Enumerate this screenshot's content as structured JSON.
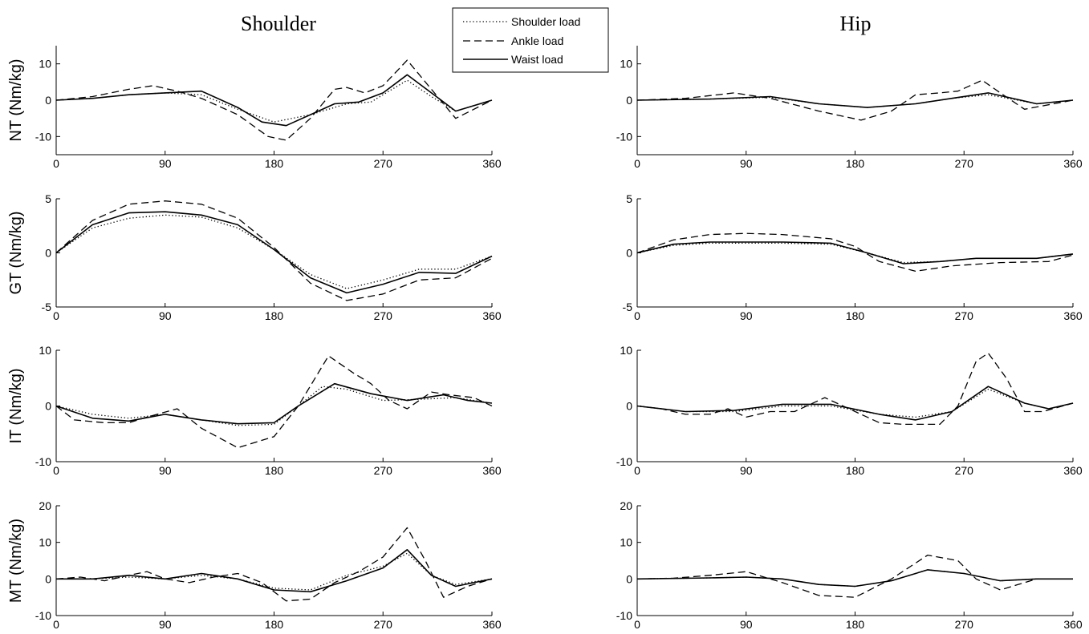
{
  "figure": {
    "column_titles": [
      "Shoulder",
      "Hip"
    ],
    "legend": [
      "Shoulder load",
      "Ankle load",
      "Waist load"
    ]
  },
  "chart_data": [
    {
      "type": "line",
      "column": "Shoulder",
      "ylabel": "NT (Nm/kg)",
      "xlim": [
        0,
        360
      ],
      "ylim": [
        -15,
        15
      ],
      "xticks": [
        0,
        90,
        180,
        270,
        360
      ],
      "yticks": [
        10,
        0,
        -10
      ],
      "series": [
        {
          "name": "Shoulder load",
          "style": "dotted",
          "x": [
            0,
            30,
            60,
            90,
            120,
            150,
            180,
            210,
            240,
            260,
            290,
            310,
            330,
            360
          ],
          "y": [
            0,
            0.5,
            1.5,
            2,
            1.5,
            -2.5,
            -6,
            -4,
            -1,
            -0.5,
            5.5,
            1,
            -3,
            0
          ]
        },
        {
          "name": "Ankle load",
          "style": "dashed",
          "x": [
            0,
            30,
            60,
            80,
            100,
            120,
            150,
            175,
            190,
            210,
            230,
            240,
            255,
            270,
            290,
            310,
            330,
            360
          ],
          "y": [
            0,
            1,
            3,
            4,
            2.5,
            0.5,
            -4,
            -10,
            -11,
            -5,
            3,
            3.5,
            2,
            4,
            11,
            3,
            -5,
            0
          ]
        },
        {
          "name": "Waist load",
          "style": "solid",
          "x": [
            0,
            30,
            60,
            90,
            120,
            150,
            170,
            190,
            210,
            230,
            250,
            270,
            290,
            310,
            330,
            360
          ],
          "y": [
            0,
            0.5,
            1.5,
            2,
            2.5,
            -2,
            -6,
            -7,
            -4,
            -1,
            -0.5,
            2,
            7,
            2,
            -3,
            0
          ]
        }
      ]
    },
    {
      "type": "line",
      "column": "Hip",
      "ylabel": "",
      "xlim": [
        0,
        360
      ],
      "ylim": [
        -15,
        15
      ],
      "xticks": [
        0,
        90,
        180,
        270,
        360
      ],
      "yticks": [
        10,
        0,
        -10
      ],
      "series": [
        {
          "name": "Shoulder load",
          "style": "dotted",
          "x": [
            0,
            60,
            110,
            150,
            190,
            230,
            260,
            290,
            330,
            360
          ],
          "y": [
            0,
            0.3,
            0.8,
            -1,
            -2,
            -1,
            0.5,
            1.5,
            -1,
            0
          ]
        },
        {
          "name": "Ankle load",
          "style": "dashed",
          "x": [
            0,
            40,
            80,
            110,
            150,
            185,
            210,
            230,
            250,
            265,
            285,
            300,
            320,
            360
          ],
          "y": [
            0,
            0.5,
            2,
            0.5,
            -3,
            -5.5,
            -3,
            1.5,
            2,
            2.5,
            5.5,
            2,
            -2.5,
            0
          ]
        },
        {
          "name": "Waist load",
          "style": "solid",
          "x": [
            0,
            60,
            110,
            150,
            190,
            230,
            260,
            290,
            330,
            360
          ],
          "y": [
            0,
            0.3,
            1,
            -1,
            -2,
            -1,
            0.5,
            2,
            -1,
            0
          ]
        }
      ]
    },
    {
      "type": "line",
      "column": "Shoulder",
      "ylabel": "GT (Nm/kg)",
      "xlim": [
        0,
        360
      ],
      "ylim": [
        -5,
        5
      ],
      "xticks": [
        0,
        90,
        180,
        270,
        360
      ],
      "yticks": [
        5,
        0,
        -5
      ],
      "series": [
        {
          "name": "Shoulder load",
          "style": "dotted",
          "x": [
            0,
            30,
            60,
            90,
            120,
            150,
            180,
            210,
            240,
            270,
            300,
            330,
            360
          ],
          "y": [
            0,
            2.3,
            3.2,
            3.5,
            3.3,
            2.3,
            0.3,
            -2,
            -3.3,
            -2.5,
            -1.5,
            -1.5,
            -0.3
          ]
        },
        {
          "name": "Ankle load",
          "style": "dashed",
          "x": [
            0,
            30,
            60,
            90,
            120,
            150,
            180,
            210,
            240,
            270,
            300,
            330,
            360
          ],
          "y": [
            0,
            3,
            4.5,
            4.8,
            4.5,
            3.2,
            0.5,
            -2.8,
            -4.4,
            -3.8,
            -2.5,
            -2.3,
            -0.5
          ]
        },
        {
          "name": "Waist load",
          "style": "solid",
          "x": [
            0,
            30,
            60,
            90,
            120,
            150,
            180,
            210,
            240,
            270,
            300,
            330,
            360
          ],
          "y": [
            0,
            2.6,
            3.7,
            3.8,
            3.5,
            2.6,
            0.3,
            -2.3,
            -3.7,
            -2.9,
            -1.8,
            -1.9,
            -0.3
          ]
        }
      ]
    },
    {
      "type": "line",
      "column": "Hip",
      "ylabel": "",
      "xlim": [
        0,
        360
      ],
      "ylim": [
        -5,
        5
      ],
      "xticks": [
        0,
        90,
        180,
        270,
        360
      ],
      "yticks": [
        5,
        0,
        -5
      ],
      "series": [
        {
          "name": "Shoulder load",
          "style": "dotted",
          "x": [
            0,
            30,
            60,
            90,
            120,
            160,
            190,
            220,
            250,
            280,
            330,
            360
          ],
          "y": [
            0,
            0.7,
            0.9,
            0.9,
            0.9,
            0.8,
            0,
            -0.9,
            -0.8,
            -0.5,
            -0.5,
            -0.1
          ]
        },
        {
          "name": "Ankle load",
          "style": "dashed",
          "x": [
            0,
            30,
            60,
            90,
            120,
            160,
            180,
            200,
            230,
            260,
            300,
            340,
            360
          ],
          "y": [
            0,
            1.2,
            1.7,
            1.8,
            1.7,
            1.3,
            0.6,
            -0.8,
            -1.7,
            -1.2,
            -0.9,
            -0.8,
            -0.2
          ]
        },
        {
          "name": "Waist load",
          "style": "solid",
          "x": [
            0,
            30,
            60,
            90,
            120,
            160,
            190,
            220,
            250,
            280,
            330,
            360
          ],
          "y": [
            0,
            0.8,
            1,
            1,
            1,
            0.9,
            0,
            -1,
            -0.8,
            -0.5,
            -0.5,
            -0.1
          ]
        }
      ]
    },
    {
      "type": "line",
      "column": "Shoulder",
      "ylabel": "IT (Nm/kg)",
      "xlim": [
        0,
        360
      ],
      "ylim": [
        -10,
        10
      ],
      "xticks": [
        0,
        90,
        180,
        270,
        360
      ],
      "yticks": [
        10,
        0,
        -10
      ],
      "series": [
        {
          "name": "Shoulder load",
          "style": "dotted",
          "x": [
            0,
            30,
            60,
            90,
            120,
            150,
            180,
            200,
            220,
            240,
            270,
            300,
            330,
            360
          ],
          "y": [
            0,
            -1.5,
            -2.2,
            -1.5,
            -2.5,
            -3.5,
            -3.3,
            0,
            3.5,
            3,
            1,
            1.2,
            1.5,
            0.5
          ]
        },
        {
          "name": "Ankle load",
          "style": "dashed",
          "x": [
            0,
            15,
            40,
            60,
            75,
            100,
            120,
            150,
            180,
            200,
            225,
            245,
            260,
            275,
            290,
            310,
            325,
            345,
            360
          ],
          "y": [
            0,
            -2.5,
            -3,
            -3,
            -2,
            -0.5,
            -4,
            -7.5,
            -5.5,
            0,
            9,
            6,
            4,
            1,
            -0.5,
            2.5,
            2,
            1.5,
            0
          ]
        },
        {
          "name": "Waist load",
          "style": "solid",
          "x": [
            0,
            30,
            60,
            90,
            120,
            150,
            180,
            200,
            230,
            260,
            290,
            320,
            340,
            360
          ],
          "y": [
            0,
            -2.2,
            -2.7,
            -1.5,
            -2.5,
            -3.2,
            -3,
            0,
            4,
            2.2,
            1,
            2,
            1,
            0.5
          ]
        }
      ]
    },
    {
      "type": "line",
      "column": "Hip",
      "ylabel": "",
      "xlim": [
        0,
        360
      ],
      "ylim": [
        -10,
        10
      ],
      "xticks": [
        0,
        90,
        180,
        270,
        360
      ],
      "yticks": [
        10,
        0,
        -10
      ],
      "series": [
        {
          "name": "Shoulder load",
          "style": "dotted",
          "x": [
            0,
            40,
            80,
            120,
            160,
            200,
            230,
            260,
            290,
            320,
            340,
            360
          ],
          "y": [
            0,
            -1,
            -1,
            0,
            0,
            -1.5,
            -2,
            -1,
            3,
            0.5,
            -0.5,
            0.5
          ]
        },
        {
          "name": "Ankle load",
          "style": "dashed",
          "x": [
            0,
            20,
            40,
            60,
            75,
            90,
            110,
            130,
            155,
            175,
            200,
            220,
            250,
            265,
            280,
            290,
            305,
            320,
            335,
            360
          ],
          "y": [
            0,
            -0.5,
            -1.5,
            -1.5,
            -0.5,
            -2,
            -1,
            -1,
            1.5,
            -0.5,
            -3,
            -3.3,
            -3.3,
            0,
            8,
            9.5,
            5,
            -1,
            -1,
            0.5
          ]
        },
        {
          "name": "Waist load",
          "style": "solid",
          "x": [
            0,
            40,
            80,
            120,
            160,
            200,
            230,
            260,
            290,
            320,
            340,
            360
          ],
          "y": [
            0,
            -1,
            -0.8,
            0.3,
            0.3,
            -1.5,
            -2.5,
            -1,
            3.5,
            0.5,
            -0.5,
            0.5
          ]
        }
      ]
    },
    {
      "type": "line",
      "column": "Shoulder",
      "ylabel": "MT (Nm/kg)",
      "xlim": [
        0,
        360
      ],
      "ylim": [
        -10,
        20
      ],
      "xticks": [
        0,
        90,
        180,
        270,
        360
      ],
      "yticks": [
        20,
        10,
        0,
        -10
      ],
      "series": [
        {
          "name": "Shoulder load",
          "style": "dotted",
          "x": [
            0,
            30,
            60,
            90,
            120,
            150,
            180,
            210,
            240,
            270,
            290,
            310,
            330,
            360
          ],
          "y": [
            0,
            0,
            0.5,
            0,
            1,
            0,
            -2.5,
            -3,
            1,
            3.5,
            7,
            1,
            -1.5,
            0
          ]
        },
        {
          "name": "Ankle load",
          "style": "dashed",
          "x": [
            0,
            20,
            40,
            60,
            75,
            90,
            110,
            130,
            150,
            170,
            190,
            210,
            230,
            250,
            270,
            290,
            305,
            320,
            340,
            360
          ],
          "y": [
            0,
            0.5,
            -0.5,
            1,
            2,
            0,
            -1,
            0.5,
            1.5,
            -1,
            -6,
            -5.5,
            -1,
            2,
            6,
            14,
            5,
            -5,
            -2,
            0
          ]
        },
        {
          "name": "Waist load",
          "style": "solid",
          "x": [
            0,
            30,
            60,
            90,
            120,
            150,
            180,
            210,
            240,
            270,
            290,
            310,
            330,
            360
          ],
          "y": [
            0,
            0,
            1,
            0,
            1.5,
            0,
            -3,
            -3.5,
            -0.5,
            3,
            8,
            1,
            -2,
            0
          ]
        }
      ]
    },
    {
      "type": "line",
      "column": "Hip",
      "ylabel": "",
      "xlim": [
        0,
        360
      ],
      "ylim": [
        -10,
        20
      ],
      "xticks": [
        0,
        90,
        180,
        270,
        360
      ],
      "yticks": [
        20,
        10,
        0,
        -10
      ],
      "series": [
        {
          "name": "Shoulder load",
          "style": "dotted",
          "x": [
            0,
            60,
            90,
            120,
            150,
            180,
            210,
            240,
            270,
            300,
            330,
            360
          ],
          "y": [
            0,
            0.3,
            0.5,
            0,
            -1.5,
            -2,
            -0.5,
            2.5,
            1.5,
            -0.5,
            0,
            0
          ]
        },
        {
          "name": "Ankle load",
          "style": "dashed",
          "x": [
            0,
            30,
            60,
            90,
            120,
            150,
            180,
            210,
            240,
            265,
            280,
            300,
            330,
            360
          ],
          "y": [
            0,
            0.2,
            1,
            2,
            -1,
            -4.5,
            -5,
            0,
            6.5,
            5,
            0,
            -3,
            0,
            0
          ]
        },
        {
          "name": "Waist load",
          "style": "solid",
          "x": [
            0,
            60,
            90,
            120,
            150,
            180,
            210,
            240,
            270,
            300,
            330,
            360
          ],
          "y": [
            0,
            0.3,
            0.5,
            0,
            -1.5,
            -2,
            -0.5,
            2.5,
            1.5,
            -0.5,
            0,
            0
          ]
        }
      ]
    }
  ]
}
